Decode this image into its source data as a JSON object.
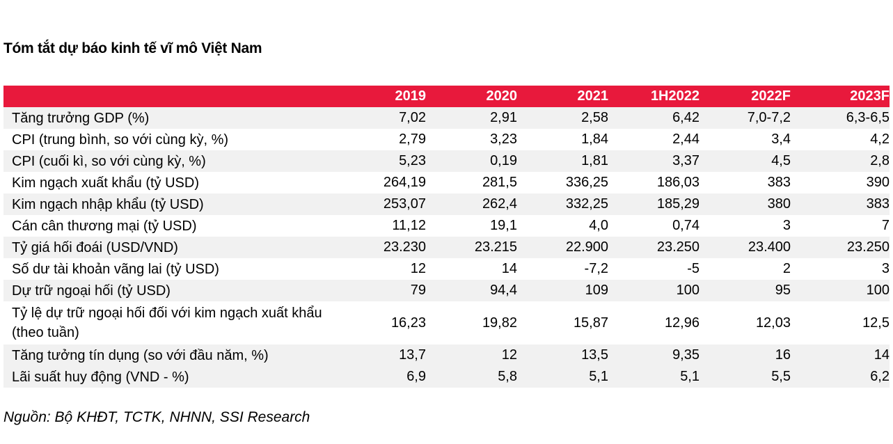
{
  "title": "Tóm tắt dự báo kinh tế vĩ mô Việt Nam",
  "header": {
    "label": "",
    "years": [
      "2019",
      "2020",
      "2021",
      "1H2022",
      "2022F",
      "2023F"
    ]
  },
  "rows": [
    {
      "label": "Tăng trưởng GDP (%)",
      "values": [
        "7,02",
        "2,91",
        "2,58",
        "6,42",
        "7,0-7,2",
        "6,3-6,5"
      ]
    },
    {
      "label": "CPI (trung bình, so với cùng kỳ, %)",
      "values": [
        "2,79",
        "3,23",
        "1,84",
        "2,44",
        "3,4",
        "4,2"
      ]
    },
    {
      "label": "CPI (cuối kì, so với cùng kỳ, %)",
      "values": [
        "5,23",
        "0,19",
        "1,81",
        "3,37",
        "4,5",
        "2,8"
      ]
    },
    {
      "label": "Kim ngạch xuất khẩu (tỷ USD)",
      "values": [
        "264,19",
        "281,5",
        "336,25",
        "186,03",
        "383",
        "390"
      ]
    },
    {
      "label": "Kim ngạch nhập khẩu (tỷ USD)",
      "values": [
        "253,07",
        "262,4",
        "332,25",
        "185,29",
        "380",
        "383"
      ]
    },
    {
      "label": "Cán cân thương mại (tỷ USD)",
      "values": [
        "11,12",
        "19,1",
        "4,0",
        "0,74",
        "3",
        "7"
      ]
    },
    {
      "label": "Tỷ giá hối đoái (USD/VND)",
      "values": [
        "23.230",
        "23.215",
        "22.900",
        "23.250",
        "23.400",
        "23.250"
      ]
    },
    {
      "label": "Số dư tài khoản vãng lai (tỷ USD)",
      "values": [
        "12",
        "14",
        "-7,2",
        "-5",
        "2",
        "3"
      ]
    },
    {
      "label": "Dự trữ ngoại hối (tỷ USD)",
      "values": [
        "79",
        "94,4",
        "109",
        "100",
        "95",
        "100"
      ]
    },
    {
      "label": "Tỷ lệ dự trữ ngoại hối đối với kim ngạch xuất khẩu (theo tuần)",
      "values": [
        "16,23",
        "19,82",
        "15,87",
        "12,96",
        "12,03",
        "12,5"
      ]
    },
    {
      "label": "Tăng tưởng tín dụng (so với đầu năm, %)",
      "values": [
        "13,7",
        "12",
        "13,5",
        "9,35",
        "16",
        "14"
      ]
    },
    {
      "label": "Lãi suất huy động (VND - %)",
      "values": [
        "6,9",
        "5,8",
        "5,1",
        "5,1",
        "5,5",
        "6,2"
      ]
    }
  ],
  "source": "Nguồn: Bộ KHĐT, TCTK, NHNN, SSI Research",
  "colors": {
    "header_bg": "#e8193c",
    "header_text": "#ffffff",
    "row_shade": "#f1f1f1"
  }
}
